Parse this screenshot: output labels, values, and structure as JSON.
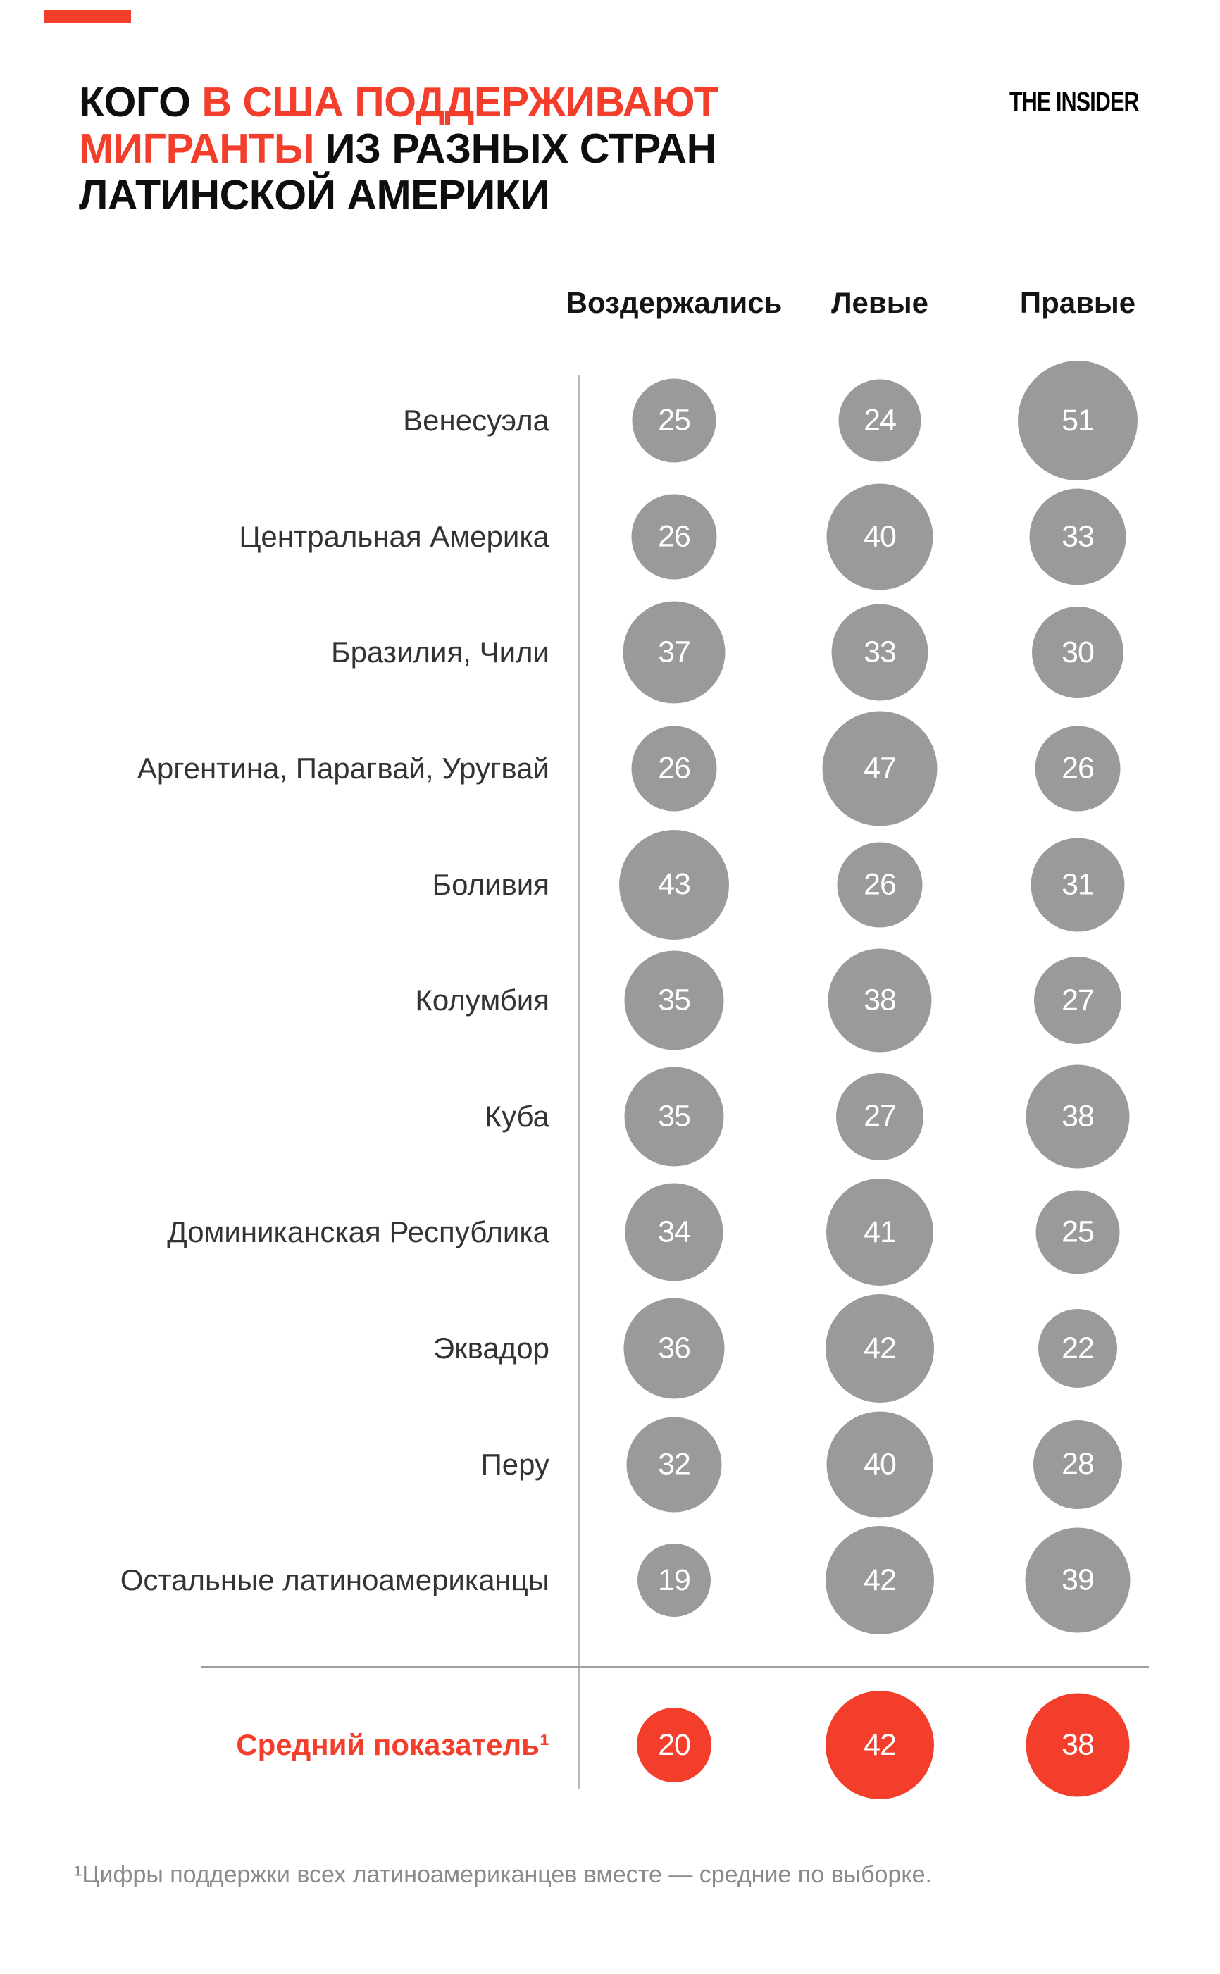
{
  "colors": {
    "red": "#f43e2c",
    "circle_gray": "#9a9a9a",
    "label_text": "#333333",
    "header_text": "#151515",
    "footnote_text": "#8a8a8a",
    "axis_line": "#b7b7b7",
    "divider_line": "#9e9e9e",
    "background": "#ffffff",
    "number_text": "#ffffff"
  },
  "brand": {
    "logo_text": "THE INSIDER"
  },
  "title": {
    "l1_black": "КОГО",
    "l1_red": "В США ПОДДЕРЖИВАЮТ",
    "l2_red": "МИГРАНТЫ",
    "l2_black": "ИЗ РАЗНЫХ СТРАН",
    "l3_black": "ЛАТИНСКОЙ АМЕРИКИ"
  },
  "columns": [
    "Воздержались",
    "Левые",
    "Правые"
  ],
  "rows": [
    {
      "label": "Венесуэла",
      "values": [
        25,
        24,
        51
      ]
    },
    {
      "label": "Центральная Америка",
      "values": [
        26,
        40,
        33
      ]
    },
    {
      "label": "Бразилия, Чили",
      "values": [
        37,
        33,
        30
      ]
    },
    {
      "label": "Аргентина, Парагвай, Уругвай",
      "values": [
        26,
        47,
        26
      ]
    },
    {
      "label": "Боливия",
      "values": [
        43,
        26,
        31
      ]
    },
    {
      "label": "Колумбия",
      "values": [
        35,
        38,
        27
      ]
    },
    {
      "label": "Куба",
      "values": [
        35,
        27,
        38
      ]
    },
    {
      "label": "Доминиканская Республика",
      "values": [
        34,
        41,
        25
      ]
    },
    {
      "label": "Эквадор",
      "values": [
        36,
        42,
        22
      ]
    },
    {
      "label": "Перу",
      "values": [
        32,
        40,
        28
      ]
    },
    {
      "label": "Остальные латиноамериканцы",
      "values": [
        19,
        42,
        39
      ]
    }
  ],
  "average": {
    "label": "Средний показатель¹",
    "values": [
      20,
      42,
      38
    ]
  },
  "footnote": "¹Цифры поддержки всех латиноамериканцев вместе — средние по выборке.",
  "chart_data": {
    "type": "bubble",
    "title": "Кого в США поддерживают мигранты из разных стран Латинской Америки",
    "columns": [
      "Воздержались",
      "Левые",
      "Правые"
    ],
    "categories": [
      "Венесуэла",
      "Центральная Америка",
      "Бразилия, Чили",
      "Аргентина, Парагвай, Уругвай",
      "Боливия",
      "Колумбия",
      "Куба",
      "Доминиканская Республика",
      "Эквадор",
      "Перу",
      "Остальные латиноамериканцы"
    ],
    "series": [
      {
        "name": "Воздержались",
        "values": [
          25,
          26,
          37,
          26,
          43,
          35,
          35,
          34,
          36,
          32,
          19
        ]
      },
      {
        "name": "Левые",
        "values": [
          24,
          40,
          33,
          47,
          26,
          38,
          27,
          41,
          42,
          40,
          42
        ]
      },
      {
        "name": "Правые",
        "values": [
          51,
          33,
          30,
          26,
          31,
          27,
          38,
          25,
          22,
          28,
          39
        ]
      }
    ],
    "average_row": {
      "name": "Средний показатель",
      "values": [
        20,
        42,
        38
      ]
    },
    "units": "percent",
    "encoding": "circle diameter proportional to sqrt(value), d = 23.8 * sqrt(v) px",
    "legend_position": "top",
    "grid": false,
    "value_color_regular": "#9a9a9a",
    "value_color_average": "#f43e2c",
    "footnote": "¹Цифры поддержки всех латиноамериканцев вместе — средние по выборке."
  }
}
